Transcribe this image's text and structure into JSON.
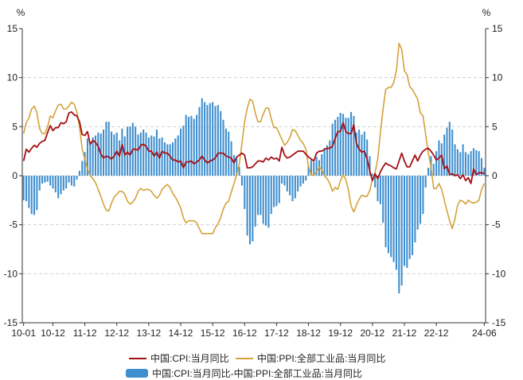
{
  "chart_data": {
    "type": "bar+line",
    "title": "",
    "y_unit_left": "%",
    "y_unit_right": "%",
    "ylim": [
      -15,
      15
    ],
    "yticks": [
      15,
      10,
      5,
      0,
      -5,
      -10,
      -15
    ],
    "ytick_labels": [
      "15",
      "10",
      "5",
      "0",
      "-5",
      "-10",
      "-15"
    ],
    "x_tick_labels": [
      "10-01",
      "10-12",
      "11-12",
      "12-12",
      "13-12",
      "14-12",
      "15-12",
      "16-12",
      "17-12",
      "18-12",
      "19-12",
      "20-12",
      "21-12",
      "22-12",
      "24-06"
    ],
    "x_tick_index": [
      0,
      11,
      23,
      35,
      47,
      59,
      71,
      83,
      95,
      107,
      119,
      131,
      143,
      155,
      173
    ],
    "start": "2010-01",
    "end": "2024-06",
    "legend": {
      "cpi": "中国:CPI:当月同比",
      "ppi": "中国:PPI:全部工业品:当月同比",
      "spread": "中国:CPI:当月同比-中国:PPI:全部工业品:当月同比"
    },
    "colors": {
      "cpi": "#a50f15",
      "ppi": "#d4a23a",
      "spread": "#3f8fcf",
      "axis": "#333333",
      "grid": "#d0d0d0"
    },
    "series": [
      {
        "name": "中国:CPI:当月同比",
        "kind": "line",
        "values": [
          1.5,
          2.7,
          2.4,
          2.8,
          3.1,
          2.9,
          3.3,
          3.5,
          3.6,
          4.4,
          5.1,
          4.6,
          4.9,
          4.9,
          5.4,
          5.3,
          5.5,
          6.4,
          6.5,
          6.2,
          6.1,
          5.5,
          4.2,
          4.1,
          4.5,
          3.2,
          3.6,
          3.4,
          3.0,
          2.2,
          1.8,
          2.0,
          1.9,
          1.7,
          2.0,
          2.5,
          2.0,
          3.2,
          2.1,
          2.4,
          2.1,
          2.7,
          2.7,
          2.6,
          3.1,
          3.2,
          3.0,
          2.5,
          2.5,
          2.0,
          2.4,
          1.8,
          2.5,
          2.3,
          2.3,
          2.0,
          1.6,
          1.6,
          1.4,
          1.5,
          0.8,
          1.4,
          1.4,
          1.5,
          1.2,
          1.4,
          1.6,
          2.0,
          1.6,
          1.3,
          1.5,
          1.6,
          1.8,
          2.3,
          2.3,
          2.3,
          2.0,
          1.9,
          1.8,
          1.3,
          1.9,
          2.1,
          2.3,
          2.1,
          0.8,
          0.8,
          0.9,
          1.2,
          1.5,
          1.5,
          1.4,
          1.8,
          1.6,
          1.9,
          1.7,
          1.8,
          1.5,
          2.9,
          2.1,
          1.8,
          1.9,
          2.1,
          2.3,
          2.5,
          2.5,
          2.5,
          2.2,
          1.9,
          1.7,
          1.5,
          2.3,
          2.5,
          2.5,
          2.7,
          2.8,
          2.8,
          3.0,
          3.8,
          4.5,
          4.5,
          5.4,
          4.5,
          4.3,
          4.3,
          5.2,
          3.3,
          2.7,
          2.4,
          2.5,
          1.7,
          0.5,
          -0.5,
          0.2,
          -0.3,
          0.4,
          0.9,
          1.3,
          1.1,
          1.0,
          0.8,
          0.7,
          1.5,
          2.3,
          1.5,
          0.9,
          0.9,
          1.5,
          2.1,
          1.5,
          2.1,
          2.5,
          2.7,
          2.8,
          2.5,
          2.1,
          1.6,
          1.8,
          2.1,
          0.7,
          1.0,
          0.1,
          0.2,
          0.0,
          0.1,
          -0.3,
          0.1,
          -0.5,
          -0.2,
          -0.8,
          0.7,
          0.1,
          0.3,
          0.3,
          0.2
        ],
        "unit": "%"
      },
      {
        "name": "中国:PPI:全部工业品:当月同比",
        "kind": "line",
        "values": [
          4.3,
          5.4,
          5.9,
          6.8,
          7.1,
          6.4,
          4.8,
          4.3,
          4.3,
          5.0,
          6.1,
          5.9,
          6.6,
          7.2,
          7.3,
          6.8,
          6.8,
          7.1,
          7.5,
          7.3,
          6.5,
          5.0,
          2.7,
          1.7,
          0.7,
          0.0,
          -0.3,
          -0.7,
          -1.4,
          -2.1,
          -2.9,
          -3.5,
          -3.6,
          -2.8,
          -2.2,
          -1.9,
          -1.6,
          -1.6,
          -1.9,
          -2.6,
          -2.9,
          -2.7,
          -2.3,
          -1.6,
          -1.3,
          -1.5,
          -1.4,
          -1.4,
          -1.6,
          -2.0,
          -2.3,
          -2.0,
          -1.4,
          -1.1,
          -0.9,
          -1.2,
          -1.8,
          -2.2,
          -2.7,
          -3.3,
          -4.3,
          -4.8,
          -4.6,
          -4.6,
          -4.6,
          -4.8,
          -5.4,
          -5.9,
          -5.9,
          -5.9,
          -5.9,
          -5.9,
          -5.3,
          -4.9,
          -4.3,
          -3.4,
          -2.8,
          -2.6,
          -1.7,
          -0.8,
          0.1,
          1.2,
          3.3,
          5.5,
          6.9,
          7.8,
          7.6,
          6.4,
          5.5,
          5.5,
          6.3,
          6.9,
          6.9,
          5.8,
          4.9,
          4.9,
          4.3,
          3.7,
          3.1,
          3.4,
          3.9,
          4.7,
          4.6,
          4.1,
          3.6,
          3.3,
          2.7,
          0.9,
          0.1,
          0.1,
          0.4,
          0.9,
          0.6,
          0.0,
          -0.3,
          -0.8,
          -1.6,
          -1.2,
          -1.4,
          -0.5,
          0.1,
          -0.4,
          -1.5,
          -3.1,
          -3.7,
          -3.0,
          -2.4,
          -2.0,
          -2.1,
          -2.1,
          -1.5,
          -0.4,
          0.3,
          1.7,
          4.4,
          6.8,
          8.8,
          9.0,
          9.0,
          9.5,
          10.7,
          13.5,
          12.9,
          10.7,
          10.3,
          9.1,
          8.8,
          8.3,
          7.8,
          6.4,
          6.1,
          4.2,
          2.3,
          0.9,
          -1.3,
          -1.3,
          -0.8,
          -1.4,
          -2.5,
          -3.6,
          -4.6,
          -5.4,
          -4.4,
          -3.0,
          -2.5,
          -2.6,
          -2.9,
          -2.5,
          -2.7,
          -2.8,
          -2.7,
          -2.5,
          -1.4,
          -0.8
        ],
        "unit": "%"
      },
      {
        "name": "中国:CPI:当月同比-中国:PPI:全部工业品:当月同比",
        "kind": "bar",
        "values": [
          -2.5,
          -2.6,
          -3.3,
          -3.9,
          -4.0,
          -3.5,
          -1.5,
          -0.8,
          -0.7,
          -0.6,
          -1.0,
          -1.3,
          -1.7,
          -2.3,
          -1.9,
          -1.5,
          -1.3,
          -0.7,
          -1.0,
          -1.1,
          -0.4,
          0.5,
          1.5,
          2.4,
          3.8,
          3.2,
          3.9,
          4.1,
          4.4,
          4.3,
          4.7,
          5.5,
          5.5,
          4.5,
          4.2,
          4.4,
          3.6,
          4.8,
          4.0,
          5.0,
          5.0,
          5.4,
          5.0,
          4.2,
          4.4,
          4.7,
          4.4,
          3.9,
          4.1,
          4.0,
          4.7,
          3.8,
          3.9,
          3.4,
          3.2,
          3.2,
          3.4,
          3.8,
          4.1,
          4.8,
          5.1,
          6.2,
          6.0,
          6.1,
          5.8,
          6.2,
          7.0,
          7.9,
          7.5,
          7.2,
          7.4,
          7.5,
          7.1,
          7.2,
          6.6,
          5.7,
          4.8,
          4.5,
          3.5,
          2.1,
          1.8,
          0.9,
          -1.0,
          -3.4,
          -6.1,
          -7.0,
          -6.7,
          -5.2,
          -4.0,
          -4.0,
          -4.9,
          -5.1,
          -5.3,
          -3.9,
          -3.2,
          -3.1,
          -2.8,
          -0.8,
          -1.0,
          -1.6,
          -2.0,
          -2.6,
          -2.3,
          -1.6,
          -1.1,
          -0.8,
          -0.5,
          1.0,
          1.6,
          1.4,
          1.9,
          1.6,
          2.2,
          2.8,
          3.1,
          3.6,
          5.3,
          5.7,
          6.0,
          6.4,
          6.3,
          5.9,
          5.9,
          6.5,
          6.1,
          4.4,
          4.7,
          4.2,
          4.5,
          3.7,
          2.0,
          0.2,
          -1.2,
          -2.6,
          -2.9,
          -4.8,
          -7.3,
          -7.9,
          -8.3,
          -8.8,
          -9.6,
          -12.0,
          -11.2,
          -9.2,
          -9.4,
          -8.5,
          -8.1,
          -6.8,
          -5.5,
          -4.9,
          -3.9,
          -1.2,
          0.8,
          2.0,
          1.2,
          2.5,
          3.6,
          3.3,
          4.2,
          4.9,
          5.5,
          4.7,
          3.2,
          2.7,
          2.4,
          3.2,
          2.4,
          2.2,
          2.5,
          2.8,
          2.6,
          2.5,
          1.8,
          0.8
        ],
        "unit": "%"
      }
    ]
  }
}
